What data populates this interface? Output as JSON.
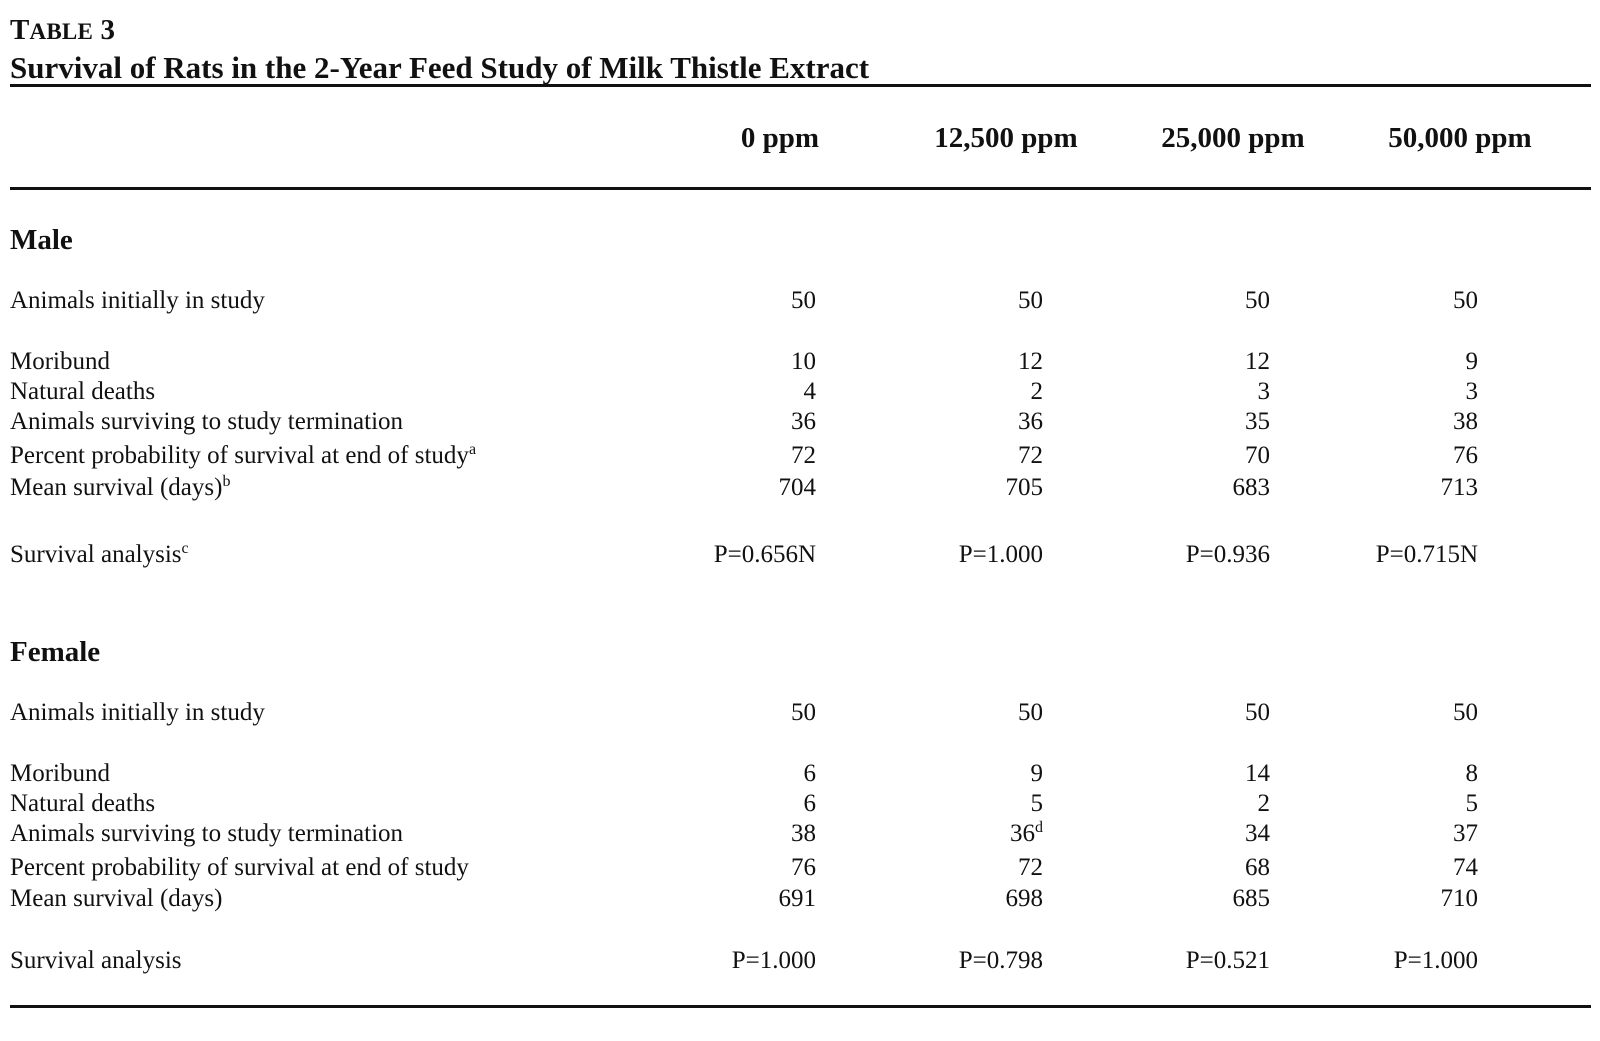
{
  "table": {
    "label_prefix": "T",
    "label_rest": "ABLE",
    "label_number": "3",
    "title": "Survival of Rats in the 2-Year Feed Study of Milk Thistle Extract",
    "columns": [
      "0 ppm",
      "12,500 ppm",
      "25,000 ppm",
      "50,000 ppm"
    ],
    "sections": [
      {
        "name": "Male",
        "rows": [
          {
            "label": "Animals initially in study",
            "sup": "",
            "values": [
              "50",
              "50",
              "50",
              "50"
            ],
            "value_sups": [
              "",
              "",
              "",
              ""
            ]
          },
          {
            "label": "Moribund",
            "sup": "",
            "values": [
              "10",
              "12",
              "12",
              "9"
            ],
            "value_sups": [
              "",
              "",
              "",
              ""
            ]
          },
          {
            "label": "Natural deaths",
            "sup": "",
            "values": [
              "4",
              "2",
              "3",
              "3"
            ],
            "value_sups": [
              "",
              "",
              "",
              ""
            ]
          },
          {
            "label": "Animals surviving to study termination",
            "sup": "",
            "values": [
              "36",
              "36",
              "35",
              "38"
            ],
            "value_sups": [
              "",
              "",
              "",
              ""
            ]
          },
          {
            "label": "Percent probability of survival at end of study",
            "sup": "a",
            "values": [
              "72",
              "72",
              "70",
              "76"
            ],
            "value_sups": [
              "",
              "",
              "",
              ""
            ]
          },
          {
            "label": "Mean survival (days)",
            "sup": "b",
            "values": [
              "704",
              "705",
              "683",
              "713"
            ],
            "value_sups": [
              "",
              "",
              "",
              ""
            ]
          },
          {
            "label": "Survival analysis",
            "sup": "c",
            "values": [
              "P=0.656N",
              "P=1.000",
              "P=0.936",
              "P=0.715N"
            ],
            "value_sups": [
              "",
              "",
              "",
              ""
            ]
          }
        ]
      },
      {
        "name": "Female",
        "rows": [
          {
            "label": "Animals initially in study",
            "sup": "",
            "values": [
              "50",
              "50",
              "50",
              "50"
            ],
            "value_sups": [
              "",
              "",
              "",
              ""
            ]
          },
          {
            "label": "Moribund",
            "sup": "",
            "values": [
              "6",
              "9",
              "14",
              "8"
            ],
            "value_sups": [
              "",
              "",
              "",
              ""
            ]
          },
          {
            "label": "Natural deaths",
            "sup": "",
            "values": [
              "6",
              "5",
              "2",
              "5"
            ],
            "value_sups": [
              "",
              "",
              "",
              ""
            ]
          },
          {
            "label": "Animals surviving to study termination",
            "sup": "",
            "values": [
              "38",
              "36",
              "34",
              "37"
            ],
            "value_sups": [
              "",
              "d",
              "",
              ""
            ]
          },
          {
            "label": "Percent probability of survival at end of study",
            "sup": "",
            "values": [
              "76",
              "72",
              "68",
              "74"
            ],
            "value_sups": [
              "",
              "",
              "",
              ""
            ]
          },
          {
            "label": "Mean survival (days)",
            "sup": "",
            "values": [
              "691",
              "698",
              "685",
              "710"
            ],
            "value_sups": [
              "",
              "",
              "",
              ""
            ]
          },
          {
            "label": "Survival analysis",
            "sup": "",
            "values": [
              "P=1.000",
              "P=0.798",
              "P=0.521",
              "P=1.000"
            ],
            "value_sups": [
              "",
              "",
              "",
              ""
            ]
          }
        ]
      }
    ]
  }
}
